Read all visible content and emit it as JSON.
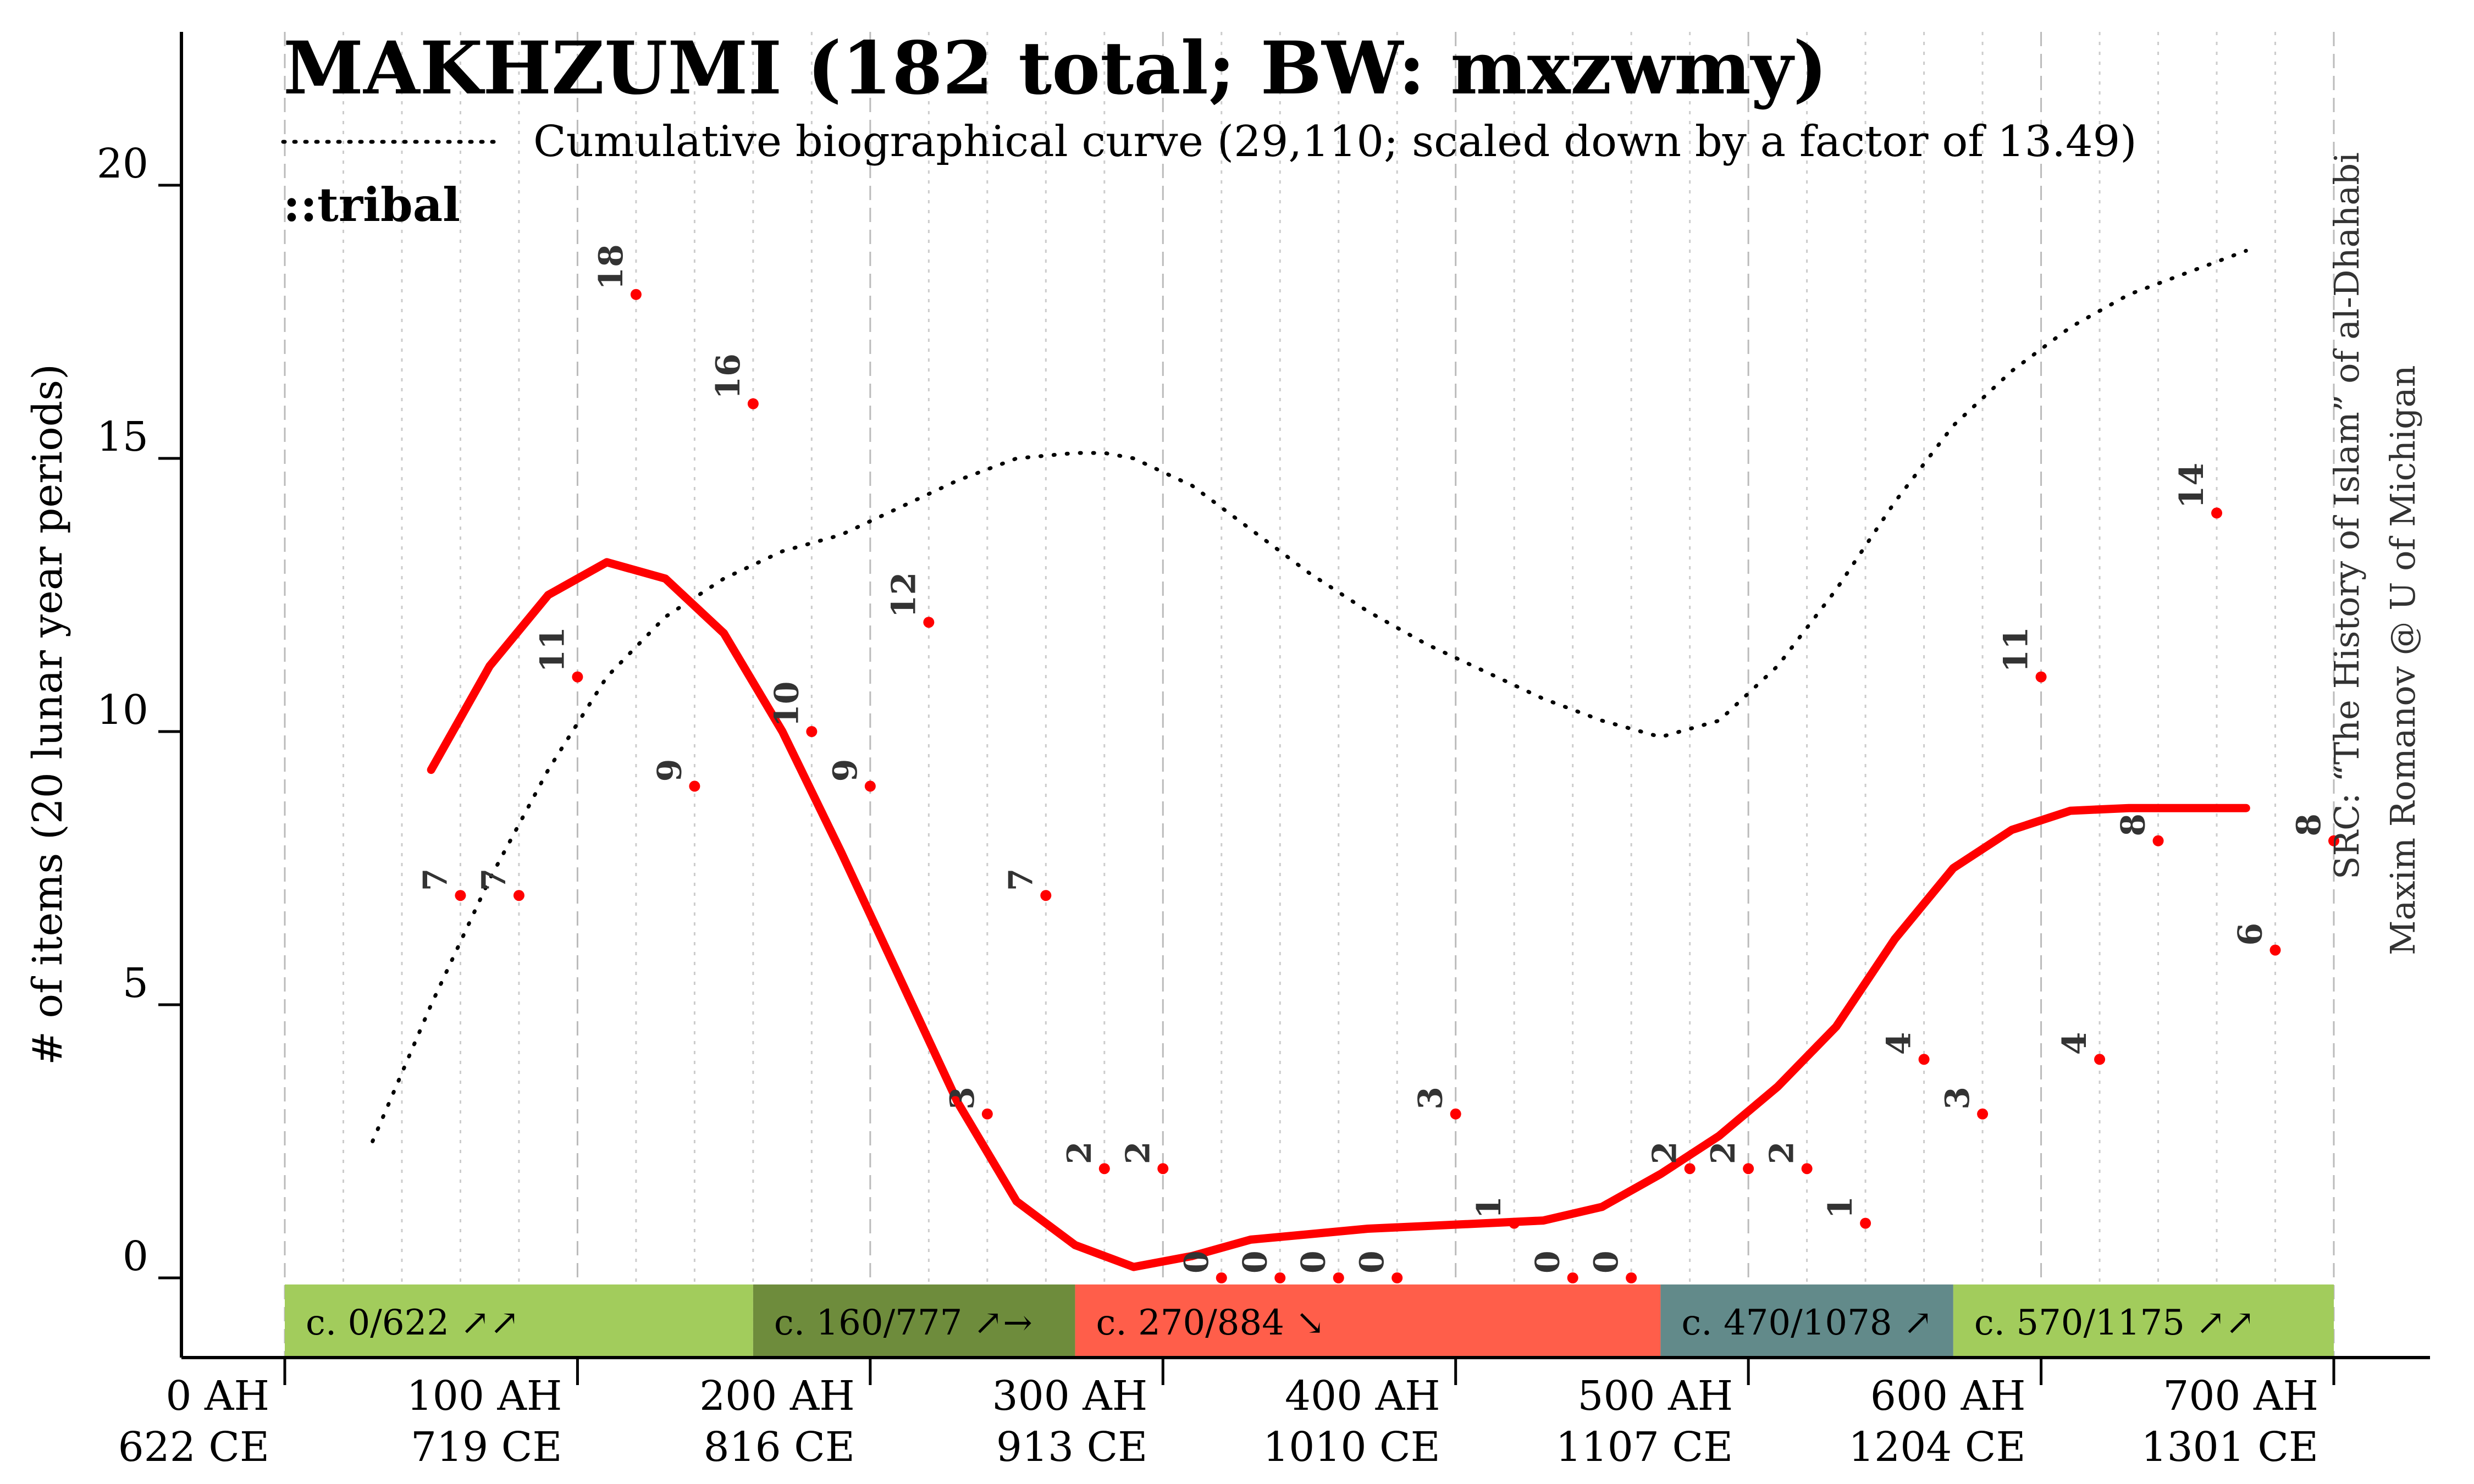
{
  "chart_data": {
    "type": "line",
    "title": "MAKHZUMI (182 total; BW: mxzwmy)",
    "subtitle": "Cumulative biographical curve (29,110; scaled down by a factor of 13.49)",
    "tag": "::tribal",
    "ylabel": "# of items (20 lunar year periods)",
    "source_line1": "SRC: “The History of Islam” of al-Dhahabi",
    "source_line2": "Maxim Romanov @ U of Michigan",
    "xlim": [
      0,
      700
    ],
    "ylim": [
      -1.5,
      22.5
    ],
    "yticks": [
      0,
      5,
      10,
      15,
      20
    ],
    "xticks": [
      {
        "ah": 0,
        "label1": "0 AH",
        "label2": "622 CE"
      },
      {
        "ah": 100,
        "label1": "100 AH",
        "label2": "719 CE"
      },
      {
        "ah": 200,
        "label1": "200 AH",
        "label2": "816 CE"
      },
      {
        "ah": 300,
        "label1": "300 AH",
        "label2": "913 CE"
      },
      {
        "ah": 400,
        "label1": "400 AH",
        "label2": "1010 CE"
      },
      {
        "ah": 500,
        "label1": "500 AH",
        "label2": "1107 CE"
      },
      {
        "ah": 600,
        "label1": "600 AH",
        "label2": "1204 CE"
      },
      {
        "ah": 700,
        "label1": "700 AH",
        "label2": "1301 CE"
      }
    ],
    "points": [
      {
        "x": 60,
        "y": 7
      },
      {
        "x": 80,
        "y": 7
      },
      {
        "x": 100,
        "y": 11
      },
      {
        "x": 120,
        "y": 18
      },
      {
        "x": 140,
        "y": 9
      },
      {
        "x": 160,
        "y": 16
      },
      {
        "x": 180,
        "y": 10
      },
      {
        "x": 200,
        "y": 9
      },
      {
        "x": 220,
        "y": 12
      },
      {
        "x": 240,
        "y": 3
      },
      {
        "x": 260,
        "y": 7
      },
      {
        "x": 280,
        "y": 2
      },
      {
        "x": 300,
        "y": 2
      },
      {
        "x": 320,
        "y": 0
      },
      {
        "x": 340,
        "y": 0
      },
      {
        "x": 360,
        "y": 0
      },
      {
        "x": 380,
        "y": 0
      },
      {
        "x": 400,
        "y": 3
      },
      {
        "x": 420,
        "y": 1
      },
      {
        "x": 440,
        "y": 0
      },
      {
        "x": 460,
        "y": 0
      },
      {
        "x": 480,
        "y": 2
      },
      {
        "x": 500,
        "y": 2
      },
      {
        "x": 520,
        "y": 2
      },
      {
        "x": 540,
        "y": 1
      },
      {
        "x": 560,
        "y": 4
      },
      {
        "x": 580,
        "y": 3
      },
      {
        "x": 600,
        "y": 11
      },
      {
        "x": 620,
        "y": 4
      },
      {
        "x": 640,
        "y": 8
      },
      {
        "x": 660,
        "y": 14
      },
      {
        "x": 680,
        "y": 6
      },
      {
        "x": 700,
        "y": 8
      }
    ],
    "trend_line": {
      "x": [
        50,
        70,
        90,
        110,
        130,
        150,
        170,
        190,
        210,
        230,
        250,
        270,
        290,
        310,
        330,
        350,
        370,
        390,
        410,
        430,
        450,
        470,
        490,
        510,
        530,
        550,
        570,
        590,
        610,
        630,
        650,
        670
      ],
      "y": [
        9.3,
        11.2,
        12.5,
        13.1,
        12.8,
        11.8,
        10.0,
        7.8,
        5.5,
        3.2,
        1.4,
        0.6,
        0.2,
        0.4,
        0.7,
        0.8,
        0.9,
        0.95,
        1.0,
        1.05,
        1.3,
        1.9,
        2.6,
        3.5,
        4.6,
        6.2,
        7.5,
        8.2,
        8.55,
        8.6,
        8.6,
        8.6
      ]
    },
    "cumulative_curve": {
      "x": [
        30,
        50,
        70,
        90,
        110,
        130,
        150,
        170,
        190,
        210,
        230,
        250,
        270,
        280,
        290,
        310,
        330,
        350,
        370,
        390,
        410,
        430,
        450,
        470,
        490,
        510,
        530,
        550,
        570,
        590,
        610,
        630,
        650,
        670
      ],
      "y": [
        2.5,
        5.0,
        7.3,
        9.3,
        11.0,
        12.1,
        12.8,
        13.3,
        13.6,
        14.1,
        14.6,
        15.0,
        15.1,
        15.1,
        15.0,
        14.5,
        13.7,
        12.9,
        12.2,
        11.6,
        11.1,
        10.6,
        10.2,
        9.9,
        10.2,
        11.2,
        12.6,
        14.2,
        15.6,
        16.6,
        17.4,
        18.0,
        18.4,
        18.8
      ]
    },
    "periods": [
      {
        "start": 0,
        "end": 160,
        "label": "c. 0/622 ↗↗",
        "color": "#a2cc5c"
      },
      {
        "start": 160,
        "end": 270,
        "label": "c. 160/777 ↗→",
        "color": "#6e8c3c"
      },
      {
        "start": 270,
        "end": 470,
        "label": "c. 270/884 ↘",
        "color": "#ff5e4a"
      },
      {
        "start": 470,
        "end": 570,
        "label": "c. 470/1078 ↗",
        "color": "#628a8a"
      },
      {
        "start": 570,
        "end": 700,
        "label": "c. 570/1175 ↗↗",
        "color": "#a2cc5c"
      }
    ],
    "colors": {
      "trend": "#ff0000",
      "points": "#ff0000",
      "cumulative": "#000000",
      "grid_major": "#bbbbbb",
      "grid_minor": "#cccccc"
    },
    "grid": true
  }
}
